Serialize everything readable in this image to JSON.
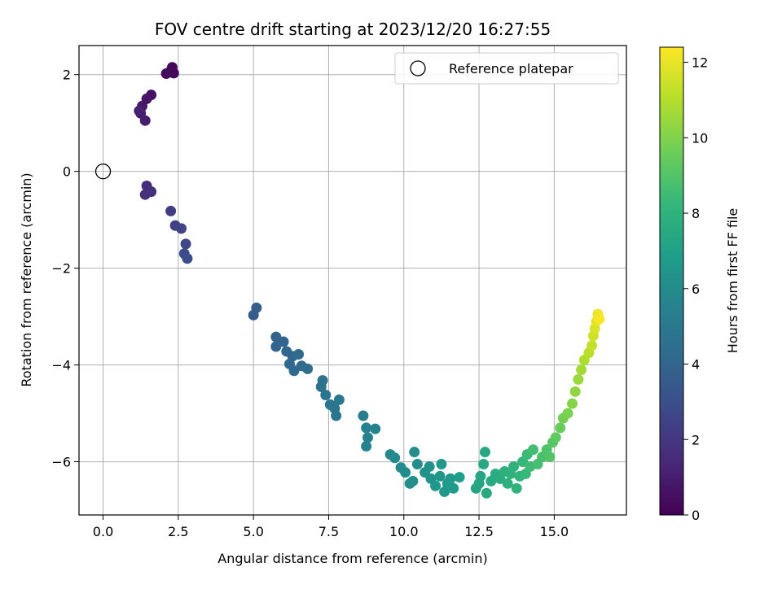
{
  "chart_data": {
    "type": "scatter",
    "title": "FOV centre drift starting at 2023/12/20 16:27:55",
    "xlabel": "Angular distance from reference (arcmin)",
    "ylabel": "Rotation from reference (arcmin)",
    "xlim": [
      -0.8,
      17.4
    ],
    "ylim": [
      -7.1,
      2.6
    ],
    "xticks": [
      0.0,
      2.5,
      5.0,
      7.5,
      10.0,
      12.5,
      15.0
    ],
    "xtick_labels": [
      "0.0",
      "2.5",
      "5.0",
      "7.5",
      "10.0",
      "12.5",
      "15.0"
    ],
    "yticks": [
      -6,
      -4,
      -2,
      0,
      2
    ],
    "ytick_labels": [
      "−6",
      "−4",
      "−2",
      "0",
      "2"
    ],
    "grid": true,
    "legend": {
      "placement": "top-right",
      "entries": [
        "Reference platepar"
      ]
    },
    "reference_point": {
      "x": 0.0,
      "y": 0.0,
      "label": "Reference platepar"
    },
    "colorbar": {
      "label": "Hours from first FF file",
      "range": [
        0,
        12.4
      ],
      "ticks": [
        0,
        2,
        4,
        6,
        8,
        10,
        12
      ],
      "tick_labels": [
        "0",
        "2",
        "4",
        "6",
        "8",
        "10",
        "12"
      ],
      "colormap": "viridis",
      "colors": [
        "#440154",
        "#482878",
        "#3e4989",
        "#31688e",
        "#26828e",
        "#1f9e89",
        "#35b779",
        "#6ece58",
        "#b5de2b",
        "#fde725"
      ]
    },
    "series": [
      {
        "points": [
          [
            2.2,
            2.05,
            0.1
          ],
          [
            2.3,
            2.15,
            0.2
          ],
          [
            2.35,
            2.03,
            0.3
          ],
          [
            2.1,
            2.02,
            0.4
          ],
          [
            1.6,
            1.58,
            0.6
          ],
          [
            1.45,
            1.5,
            0.7
          ],
          [
            1.3,
            1.35,
            0.8
          ],
          [
            1.25,
            1.2,
            0.9
          ],
          [
            1.4,
            1.05,
            1.0
          ],
          [
            1.2,
            1.25,
            1.1
          ],
          [
            1.45,
            -0.3,
            1.6
          ],
          [
            1.6,
            -0.42,
            1.7
          ],
          [
            1.4,
            -0.48,
            1.8
          ],
          [
            2.25,
            -0.82,
            2.3
          ],
          [
            2.4,
            -1.12,
            2.4
          ],
          [
            2.6,
            -1.18,
            2.5
          ],
          [
            2.75,
            -1.5,
            2.7
          ],
          [
            2.7,
            -1.7,
            2.8
          ],
          [
            2.8,
            -1.8,
            2.9
          ],
          [
            5.0,
            -2.97,
            3.6
          ],
          [
            5.1,
            -2.82,
            3.7
          ],
          [
            5.75,
            -3.42,
            3.9
          ],
          [
            5.75,
            -3.62,
            4.0
          ],
          [
            6.0,
            -3.52,
            4.0
          ],
          [
            6.1,
            -3.72,
            4.1
          ],
          [
            6.3,
            -3.82,
            4.1
          ],
          [
            6.2,
            -3.98,
            4.2
          ],
          [
            6.35,
            -4.12,
            4.2
          ],
          [
            6.5,
            -3.78,
            4.3
          ],
          [
            6.6,
            -4.02,
            4.3
          ],
          [
            6.8,
            -4.08,
            4.4
          ],
          [
            7.3,
            -4.32,
            4.7
          ],
          [
            7.25,
            -4.45,
            4.7
          ],
          [
            7.4,
            -4.62,
            4.8
          ],
          [
            7.55,
            -4.82,
            4.8
          ],
          [
            7.7,
            -4.9,
            4.9
          ],
          [
            7.75,
            -5.05,
            4.9
          ],
          [
            7.85,
            -4.72,
            5.0
          ],
          [
            8.65,
            -5.05,
            5.3
          ],
          [
            8.75,
            -5.3,
            5.4
          ],
          [
            8.8,
            -5.5,
            5.4
          ],
          [
            8.75,
            -5.68,
            5.5
          ],
          [
            9.05,
            -5.32,
            5.5
          ],
          [
            9.55,
            -5.85,
            5.8
          ],
          [
            9.7,
            -5.92,
            5.9
          ],
          [
            9.9,
            -6.12,
            5.9
          ],
          [
            10.05,
            -6.22,
            6.0
          ],
          [
            10.2,
            -6.45,
            6.0
          ],
          [
            10.35,
            -5.8,
            6.1
          ],
          [
            10.45,
            -6.05,
            6.1
          ],
          [
            10.3,
            -6.4,
            6.2
          ],
          [
            10.7,
            -6.22,
            6.3
          ],
          [
            10.85,
            -6.1,
            6.3
          ],
          [
            10.9,
            -6.35,
            6.4
          ],
          [
            11.05,
            -6.5,
            6.5
          ],
          [
            11.2,
            -6.3,
            6.5
          ],
          [
            11.25,
            -6.05,
            6.6
          ],
          [
            11.35,
            -6.62,
            6.6
          ],
          [
            11.45,
            -6.45,
            6.7
          ],
          [
            11.55,
            -6.35,
            6.7
          ],
          [
            11.65,
            -6.55,
            6.8
          ],
          [
            11.85,
            -6.32,
            6.9
          ],
          [
            12.4,
            -6.55,
            7.2
          ],
          [
            12.5,
            -6.45,
            7.3
          ],
          [
            12.55,
            -6.3,
            7.3
          ],
          [
            12.65,
            -6.05,
            7.4
          ],
          [
            12.7,
            -5.8,
            7.4
          ],
          [
            12.75,
            -6.65,
            7.5
          ],
          [
            12.9,
            -6.4,
            7.5
          ],
          [
            13.05,
            -6.25,
            7.6
          ],
          [
            13.2,
            -6.35,
            7.7
          ],
          [
            13.35,
            -6.2,
            7.8
          ],
          [
            13.45,
            -6.45,
            7.8
          ],
          [
            13.55,
            -6.25,
            7.9
          ],
          [
            13.65,
            -6.1,
            8.0
          ],
          [
            13.75,
            -6.55,
            8.0
          ],
          [
            13.85,
            -6.3,
            8.1
          ],
          [
            13.95,
            -6.0,
            8.2
          ],
          [
            14.05,
            -6.25,
            8.3
          ],
          [
            14.1,
            -5.85,
            8.4
          ],
          [
            14.2,
            -6.1,
            8.5
          ],
          [
            14.3,
            -5.75,
            8.6
          ],
          [
            14.45,
            -6.05,
            8.7
          ],
          [
            14.6,
            -5.9,
            8.8
          ],
          [
            14.75,
            -5.75,
            8.9
          ],
          [
            14.85,
            -5.9,
            9.0
          ],
          [
            14.95,
            -5.6,
            9.1
          ],
          [
            15.05,
            -5.5,
            9.3
          ],
          [
            15.2,
            -5.3,
            9.5
          ],
          [
            15.3,
            -5.1,
            9.7
          ],
          [
            15.45,
            -5.0,
            9.9
          ],
          [
            15.6,
            -4.8,
            10.1
          ],
          [
            15.7,
            -4.55,
            10.3
          ],
          [
            15.8,
            -4.3,
            10.5
          ],
          [
            15.9,
            -4.1,
            10.7
          ],
          [
            16.0,
            -3.9,
            10.9
          ],
          [
            16.15,
            -3.75,
            11.1
          ],
          [
            16.25,
            -3.6,
            11.3
          ],
          [
            16.3,
            -3.4,
            11.5
          ],
          [
            16.35,
            -3.25,
            11.7
          ],
          [
            16.4,
            -3.1,
            11.9
          ],
          [
            16.45,
            -2.95,
            12.1
          ],
          [
            16.5,
            -3.05,
            12.3
          ]
        ]
      }
    ]
  }
}
